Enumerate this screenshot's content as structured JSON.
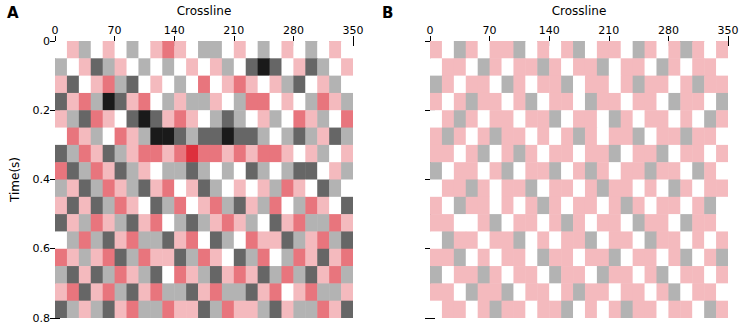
{
  "chart_data": [
    {
      "type": "heatmap",
      "title": "A",
      "x_label": "Crossline",
      "y_label": "Time(s)",
      "xlim": [
        0,
        350
      ],
      "xticks": [
        0,
        70,
        140,
        210,
        280,
        350
      ],
      "ylim": [
        0,
        0.8
      ],
      "yticks": [
        0,
        0.2,
        0.4,
        0.6,
        0.8
      ],
      "zlim": [
        -3,
        3
      ],
      "x_bins": [
        0,
        14,
        28,
        42,
        56,
        70,
        84,
        98,
        112,
        126,
        140,
        154,
        168,
        182,
        196,
        210,
        224,
        238,
        252,
        266,
        280,
        294,
        308,
        322,
        336,
        350
      ],
      "y_bins": [
        0,
        0.05,
        0.1,
        0.15,
        0.2,
        0.25,
        0.3,
        0.35,
        0.4,
        0.45,
        0.5,
        0.55,
        0.6,
        0.65,
        0.7,
        0.75,
        0.8
      ],
      "cells": [
        [
          0,
          1,
          -1,
          0,
          1,
          0,
          -1,
          0,
          1,
          2,
          1,
          0,
          -1,
          -1,
          0,
          1,
          0,
          -1,
          0,
          1,
          0,
          -1,
          0,
          1,
          0
        ],
        [
          -1,
          0,
          1,
          -2,
          -1,
          1,
          0,
          -1,
          0,
          -1,
          0,
          1,
          0,
          1,
          -1,
          0,
          -2,
          -3,
          -2,
          0,
          1,
          -2,
          -1,
          0,
          1
        ],
        [
          1,
          -2,
          0,
          1,
          2,
          -1,
          -2,
          0,
          1,
          0,
          -1,
          0,
          2,
          0,
          1,
          2,
          1,
          0,
          1,
          -1,
          -2,
          0,
          1,
          -1,
          0
        ],
        [
          -2,
          1,
          2,
          -1,
          -3,
          -2,
          1,
          2,
          0,
          -1,
          1,
          -1,
          -1,
          1,
          0,
          -1,
          2,
          2,
          0,
          1,
          0,
          -1,
          2,
          1,
          -1
        ],
        [
          1,
          -1,
          -2,
          2,
          1,
          0,
          -2,
          -3,
          -2,
          1,
          2,
          1,
          0,
          -1,
          -2,
          -1,
          0,
          1,
          -1,
          0,
          2,
          1,
          -1,
          0,
          2
        ],
        [
          0,
          2,
          1,
          -1,
          0,
          2,
          1,
          -1,
          -3,
          -3,
          -2,
          -1,
          -2,
          -2,
          -3,
          -2,
          -2,
          -1,
          0,
          -1,
          -2,
          -1,
          1,
          -2,
          -1
        ],
        [
          -2,
          -1,
          2,
          1,
          -2,
          -1,
          1,
          2,
          2,
          1,
          2,
          3,
          2,
          2,
          1,
          2,
          1,
          2,
          2,
          1,
          0,
          1,
          -1,
          0,
          1
        ],
        [
          2,
          -2,
          -1,
          2,
          1,
          -2,
          -1,
          1,
          0,
          -1,
          -1,
          -2,
          -1,
          0,
          -1,
          0,
          -2,
          -1,
          0,
          -1,
          -2,
          -2,
          0,
          1,
          -1
        ],
        [
          -1,
          1,
          -2,
          -1,
          2,
          1,
          -1,
          -2,
          1,
          2,
          0,
          1,
          -2,
          -1,
          0,
          1,
          0,
          1,
          -1,
          2,
          1,
          0,
          -2,
          -1,
          0
        ],
        [
          1,
          -2,
          1,
          -2,
          -1,
          2,
          1,
          0,
          -2,
          -1,
          2,
          0,
          1,
          2,
          -1,
          -2,
          1,
          -1,
          2,
          0,
          -1,
          2,
          1,
          0,
          -2
        ],
        [
          -2,
          1,
          -1,
          2,
          1,
          -1,
          -2,
          1,
          2,
          0,
          -1,
          -2,
          -1,
          1,
          2,
          1,
          -1,
          0,
          -2,
          1,
          2,
          -1,
          -1,
          2,
          1
        ],
        [
          0,
          -1,
          2,
          -1,
          -2,
          1,
          2,
          -1,
          -1,
          -2,
          1,
          2,
          0,
          -2,
          -1,
          0,
          2,
          1,
          1,
          -2,
          -1,
          1,
          2,
          -1,
          -2
        ],
        [
          2,
          1,
          -1,
          1,
          2,
          -2,
          -1,
          2,
          1,
          1,
          -2,
          -1,
          2,
          1,
          0,
          -2,
          -1,
          2,
          0,
          -1,
          2,
          1,
          -2,
          1,
          2
        ],
        [
          -1,
          -2,
          1,
          -2,
          -1,
          2,
          1,
          -1,
          -2,
          0,
          2,
          1,
          -1,
          -2,
          1,
          2,
          1,
          -2,
          -1,
          2,
          -1,
          -2,
          1,
          2,
          -1
        ],
        [
          1,
          2,
          -2,
          1,
          2,
          -1,
          -2,
          1,
          2,
          -1,
          -1,
          -2,
          1,
          2,
          -1,
          -1,
          -2,
          1,
          2,
          0,
          1,
          2,
          -1,
          -1,
          1
        ],
        [
          -2,
          -1,
          1,
          -1,
          -2,
          1,
          2,
          -1,
          -1,
          2,
          1,
          1,
          -2,
          -1,
          2,
          1,
          1,
          -1,
          -2,
          1,
          -1,
          -1,
          2,
          1,
          -2
        ]
      ]
    },
    {
      "type": "heatmap",
      "title": "B",
      "x_label": "Crossline",
      "xlim": [
        0,
        350
      ],
      "xticks": [
        0,
        70,
        140,
        210,
        280,
        350
      ],
      "ylim": [
        0,
        0.8
      ],
      "yticks": [
        0,
        0.2,
        0.4,
        0.6,
        0.8
      ],
      "tick_labels": "x",
      "zlim": [
        -3,
        3
      ],
      "x_bins": [
        0,
        14,
        28,
        42,
        56,
        70,
        84,
        98,
        112,
        126,
        140,
        154,
        168,
        182,
        196,
        210,
        224,
        238,
        252,
        266,
        280,
        294,
        308,
        322,
        336,
        350
      ],
      "y_bins": [
        0,
        0.05,
        0.1,
        0.15,
        0.2,
        0.25,
        0.3,
        0.35,
        0.4,
        0.45,
        0.5,
        0.55,
        0.6,
        0.65,
        0.7,
        0.75,
        0.8
      ],
      "cells": [
        [
          1,
          0,
          -1,
          1,
          0,
          1,
          1,
          -1,
          0,
          1,
          0,
          1,
          -1,
          0,
          1,
          1,
          0,
          -1,
          1,
          0,
          1,
          -1,
          1,
          0,
          1
        ],
        [
          0,
          1,
          1,
          0,
          -1,
          1,
          0,
          1,
          1,
          -1,
          1,
          0,
          1,
          1,
          -1,
          0,
          1,
          1,
          0,
          -1,
          1,
          0,
          1,
          1,
          0
        ],
        [
          -1,
          1,
          0,
          1,
          1,
          0,
          -1,
          1,
          0,
          1,
          1,
          -1,
          0,
          1,
          1,
          0,
          1,
          -1,
          1,
          1,
          0,
          1,
          -1,
          1,
          1
        ],
        [
          1,
          0,
          1,
          -1,
          1,
          1,
          0,
          1,
          -1,
          0,
          1,
          1,
          0,
          -1,
          1,
          1,
          0,
          1,
          1,
          0,
          -1,
          1,
          1,
          0,
          -1
        ],
        [
          0,
          1,
          -1,
          1,
          0,
          1,
          1,
          0,
          1,
          1,
          -1,
          0,
          1,
          1,
          0,
          -1,
          1,
          0,
          1,
          1,
          0,
          1,
          0,
          -1,
          1
        ],
        [
          1,
          -1,
          1,
          0,
          1,
          -1,
          1,
          1,
          0,
          1,
          0,
          1,
          -1,
          1,
          0,
          1,
          1,
          -1,
          0,
          1,
          1,
          -1,
          1,
          1,
          0
        ],
        [
          1,
          1,
          0,
          1,
          -1,
          0,
          1,
          -1,
          1,
          0,
          1,
          1,
          0,
          1,
          1,
          -1,
          0,
          1,
          1,
          -1,
          0,
          1,
          1,
          0,
          1
        ],
        [
          -1,
          0,
          1,
          1,
          0,
          1,
          -1,
          0,
          1,
          1,
          -1,
          0,
          1,
          -1,
          1,
          0,
          1,
          1,
          -1,
          1,
          1,
          0,
          -1,
          1,
          0
        ],
        [
          0,
          1,
          1,
          -1,
          1,
          0,
          1,
          1,
          -1,
          0,
          1,
          1,
          0,
          1,
          -1,
          1,
          1,
          0,
          1,
          0,
          -1,
          1,
          0,
          1,
          1
        ],
        [
          1,
          0,
          -1,
          1,
          1,
          0,
          1,
          0,
          1,
          -1,
          1,
          0,
          1,
          1,
          0,
          1,
          -1,
          1,
          0,
          1,
          1,
          0,
          1,
          -1,
          0
        ],
        [
          1,
          1,
          0,
          0,
          1,
          -1,
          0,
          1,
          1,
          0,
          1,
          -1,
          1,
          0,
          1,
          1,
          0,
          -1,
          1,
          1,
          0,
          -1,
          1,
          1,
          0
        ],
        [
          0,
          -1,
          1,
          1,
          0,
          1,
          1,
          -1,
          0,
          1,
          0,
          1,
          1,
          -1,
          0,
          1,
          1,
          0,
          -1,
          1,
          1,
          0,
          1,
          0,
          1
        ],
        [
          1,
          1,
          -1,
          0,
          1,
          0,
          1,
          1,
          0,
          -1,
          1,
          1,
          0,
          1,
          1,
          -1,
          0,
          1,
          1,
          0,
          1,
          -1,
          0,
          1,
          -1
        ],
        [
          -1,
          0,
          1,
          1,
          -1,
          1,
          0,
          1,
          1,
          0,
          -1,
          1,
          1,
          0,
          -1,
          1,
          1,
          0,
          1,
          -1,
          0,
          1,
          1,
          0,
          1
        ],
        [
          1,
          1,
          0,
          -1,
          1,
          1,
          -1,
          0,
          1,
          1,
          0,
          1,
          -1,
          1,
          1,
          0,
          1,
          1,
          0,
          1,
          -1,
          0,
          1,
          1,
          0
        ],
        [
          0,
          1,
          1,
          0,
          1,
          -1,
          1,
          1,
          0,
          1,
          1,
          -1,
          0,
          1,
          0,
          1,
          -1,
          1,
          1,
          0,
          1,
          1,
          0,
          -1,
          1
        ]
      ]
    }
  ]
}
